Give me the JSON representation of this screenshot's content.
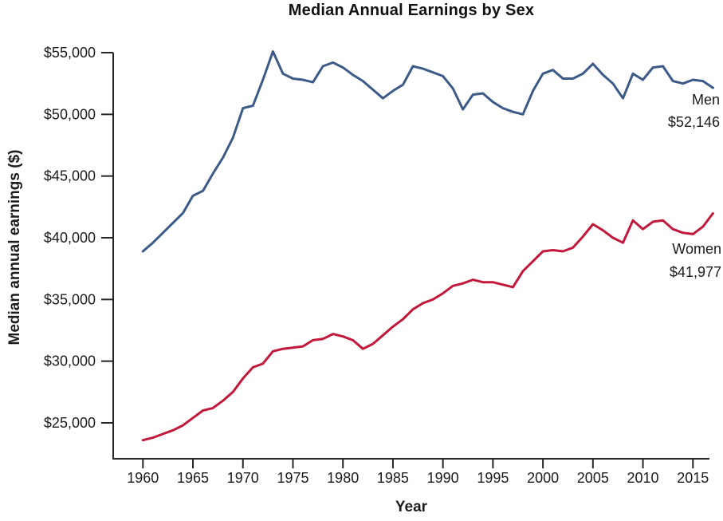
{
  "title": "Median Annual Earnings by Sex",
  "chart_data": {
    "type": "line",
    "title": "Median Annual Earnings by Sex",
    "xlabel": "Year",
    "ylabel": "Median annual earnings ($)",
    "xlim": [
      1957,
      2018
    ],
    "ylim": [
      23000,
      55500
    ],
    "grid": false,
    "legend_position": "inline-right-of-lines",
    "x": [
      1960,
      1961,
      1962,
      1963,
      1964,
      1965,
      1966,
      1967,
      1968,
      1969,
      1970,
      1971,
      1972,
      1973,
      1974,
      1975,
      1976,
      1977,
      1978,
      1979,
      1980,
      1981,
      1982,
      1983,
      1984,
      1985,
      1986,
      1987,
      1988,
      1989,
      1990,
      1991,
      1992,
      1993,
      1994,
      1995,
      1996,
      1997,
      1998,
      1999,
      2000,
      2001,
      2002,
      2003,
      2004,
      2005,
      2006,
      2007,
      2008,
      2009,
      2010,
      2011,
      2012,
      2013,
      2014,
      2015,
      2016,
      2017
    ],
    "x_ticks": [
      1960,
      1965,
      1970,
      1975,
      1980,
      1985,
      1990,
      1995,
      2000,
      2005,
      2010,
      2015
    ],
    "x_tick_labels": [
      "1960",
      "1965",
      "1970",
      "1975",
      "1980",
      "1985",
      "1990",
      "1995",
      "2000",
      "2005",
      "2010",
      "2015"
    ],
    "y_ticks": [
      55000,
      50000,
      45000,
      40000,
      35000,
      30000,
      25000
    ],
    "y_tick_labels": [
      "$55,000",
      "$50,000",
      "$45,000",
      "$40,000",
      "$35,000",
      "$30,000",
      "$25,000"
    ],
    "series": [
      {
        "name": "Men",
        "color": "#3C5A88",
        "final_value_label": "$52,146",
        "values": [
          38900,
          39600,
          40400,
          41200,
          42000,
          43400,
          43800,
          45200,
          46500,
          48100,
          50500,
          50700,
          52800,
          55100,
          53300,
          52900,
          52800,
          52600,
          53900,
          54200,
          53800,
          53200,
          52700,
          52000,
          51300,
          51900,
          52400,
          53900,
          53700,
          53400,
          53100,
          52100,
          50400,
          51600,
          51700,
          51000,
          50500,
          50200,
          50000,
          51900,
          53300,
          53600,
          52900,
          52900,
          53300,
          54100,
          53200,
          52500,
          51300,
          53300,
          52800,
          53800,
          53900,
          52700,
          52500,
          52800,
          52700,
          52146
        ]
      },
      {
        "name": "Women",
        "color": "#C2183C",
        "final_value_label": "$41,977",
        "values": [
          23600,
          23800,
          24100,
          24400,
          24800,
          25400,
          26000,
          26200,
          26800,
          27500,
          28600,
          29500,
          29800,
          30800,
          31000,
          31100,
          31200,
          31700,
          31800,
          32200,
          32000,
          31700,
          31000,
          31400,
          32100,
          32800,
          33400,
          34200,
          34700,
          35000,
          35500,
          36100,
          36300,
          36600,
          36400,
          36400,
          36200,
          36000,
          37300,
          38100,
          38900,
          39000,
          38900,
          39200,
          40100,
          41100,
          40600,
          40000,
          39600,
          41400,
          40700,
          41300,
          41400,
          40700,
          40400,
          40300,
          40900,
          41977
        ]
      }
    ],
    "annotations": [
      {
        "series": "Men",
        "line1": "Men",
        "line2": "$52,146"
      },
      {
        "series": "Women",
        "line1": "Women",
        "line2": "$41,977"
      }
    ],
    "axis_color": "#262626",
    "text_color": "#1c1c1c"
  }
}
